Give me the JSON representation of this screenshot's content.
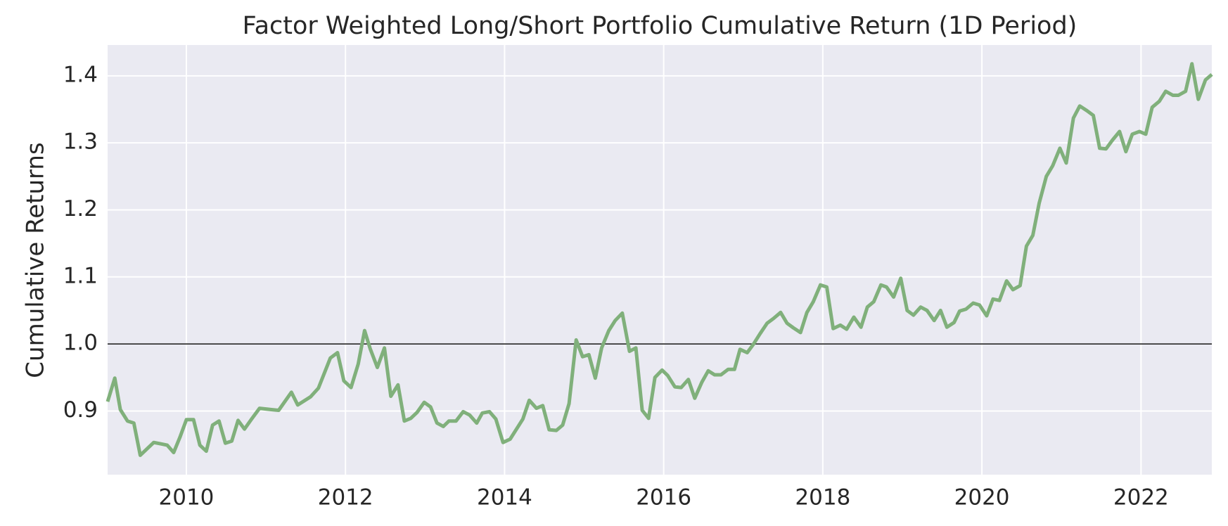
{
  "chart_data": {
    "type": "line",
    "title": "Factor Weighted Long/Short Portfolio Cumulative Return (1D Period)",
    "y_label": "Cumulative Returns",
    "x": [
      2009.01,
      2009.1,
      2009.17,
      2009.26,
      2009.34,
      2009.42,
      2009.59,
      2009.68,
      2009.76,
      2009.84,
      2009.92,
      2010.0,
      2010.09,
      2010.17,
      2010.25,
      2010.33,
      2010.41,
      2010.49,
      2010.57,
      2010.65,
      2010.73,
      2010.82,
      2010.92,
      2011.07,
      2011.16,
      2011.32,
      2011.4,
      2011.56,
      2011.66,
      2011.81,
      2011.9,
      2011.98,
      2012.07,
      2012.16,
      2012.24,
      2012.31,
      2012.4,
      2012.49,
      2012.57,
      2012.66,
      2012.74,
      2012.82,
      2012.9,
      2012.99,
      2013.07,
      2013.15,
      2013.23,
      2013.3,
      2013.39,
      2013.48,
      2013.56,
      2013.65,
      2013.72,
      2013.81,
      2013.89,
      2013.98,
      2014.07,
      2014.23,
      2014.31,
      2014.4,
      2014.48,
      2014.56,
      2014.65,
      2014.73,
      2014.81,
      2014.9,
      2014.98,
      2015.06,
      2015.14,
      2015.22,
      2015.31,
      2015.39,
      2015.48,
      2015.57,
      2015.65,
      2015.73,
      2015.81,
      2015.89,
      2015.98,
      2016.05,
      2016.14,
      2016.22,
      2016.31,
      2016.39,
      2016.48,
      2016.56,
      2016.64,
      2016.72,
      2016.81,
      2016.89,
      2016.96,
      2017.05,
      2017.13,
      2017.21,
      2017.3,
      2017.38,
      2017.47,
      2017.55,
      2017.63,
      2017.72,
      2017.8,
      2017.88,
      2017.97,
      2018.05,
      2018.13,
      2018.22,
      2018.3,
      2018.39,
      2018.48,
      2018.56,
      2018.64,
      2018.73,
      2018.8,
      2018.89,
      2018.98,
      2019.06,
      2019.14,
      2019.23,
      2019.31,
      2019.4,
      2019.48,
      2019.56,
      2019.65,
      2019.72,
      2019.8,
      2019.89,
      2019.97,
      2020.06,
      2020.14,
      2020.22,
      2020.31,
      2020.39,
      2020.48,
      2020.56,
      2020.64,
      2020.72,
      2020.81,
      2020.89,
      2020.98,
      2021.06,
      2021.15,
      2021.23,
      2021.32,
      2021.4,
      2021.48,
      2021.56,
      2021.64,
      2021.73,
      2021.81,
      2021.89,
      2021.98,
      2022.06,
      2022.14,
      2022.23,
      2022.31,
      2022.4,
      2022.47,
      2022.56,
      2022.64,
      2022.72,
      2022.81,
      2022.89
    ],
    "series": [
      {
        "color": "#80b07b",
        "values": [
          0.914,
          0.949,
          0.902,
          0.885,
          0.882,
          0.834,
          0.853,
          0.851,
          0.849,
          0.838,
          0.861,
          0.887,
          0.887,
          0.849,
          0.84,
          0.879,
          0.885,
          0.852,
          0.855,
          0.886,
          0.873,
          0.888,
          0.904,
          0.902,
          0.901,
          0.928,
          0.909,
          0.921,
          0.934,
          0.979,
          0.987,
          0.945,
          0.935,
          0.97,
          1.02,
          0.993,
          0.965,
          0.994,
          0.922,
          0.939,
          0.885,
          0.889,
          0.898,
          0.913,
          0.906,
          0.882,
          0.877,
          0.885,
          0.885,
          0.899,
          0.894,
          0.882,
          0.897,
          0.899,
          0.888,
          0.853,
          0.858,
          0.888,
          0.916,
          0.904,
          0.908,
          0.872,
          0.871,
          0.879,
          0.911,
          1.006,
          0.981,
          0.984,
          0.949,
          0.994,
          1.02,
          1.035,
          1.046,
          0.989,
          0.994,
          0.901,
          0.889,
          0.95,
          0.961,
          0.953,
          0.936,
          0.935,
          0.947,
          0.919,
          0.943,
          0.96,
          0.954,
          0.954,
          0.962,
          0.962,
          0.992,
          0.987,
          1.0,
          1.015,
          1.031,
          1.038,
          1.047,
          1.031,
          1.024,
          1.017,
          1.047,
          1.063,
          1.088,
          1.085,
          1.023,
          1.028,
          1.022,
          1.04,
          1.025,
          1.055,
          1.063,
          1.088,
          1.085,
          1.07,
          1.098,
          1.05,
          1.043,
          1.055,
          1.05,
          1.035,
          1.05,
          1.025,
          1.032,
          1.049,
          1.052,
          1.061,
          1.058,
          1.042,
          1.067,
          1.065,
          1.094,
          1.081,
          1.087,
          1.146,
          1.162,
          1.21,
          1.25,
          1.266,
          1.292,
          1.27,
          1.337,
          1.355,
          1.348,
          1.341,
          1.292,
          1.291,
          1.304,
          1.317,
          1.287,
          1.313,
          1.317,
          1.313,
          1.353,
          1.362,
          1.377,
          1.371,
          1.371,
          1.377,
          1.418,
          1.365,
          1.394,
          1.402
        ]
      }
    ],
    "hline": 1,
    "xlim": [
      2009.01,
      2022.89
    ],
    "xticks": [
      2010,
      2012,
      2014,
      2016,
      2018,
      2020,
      2022
    ],
    "ylim": [
      0.805,
      1.446
    ],
    "yticks": [
      0.9,
      {
        "value": 1,
        "label": "1.0"
      },
      1.1,
      1.2,
      1.3,
      1.4
    ],
    "grid": true
  }
}
